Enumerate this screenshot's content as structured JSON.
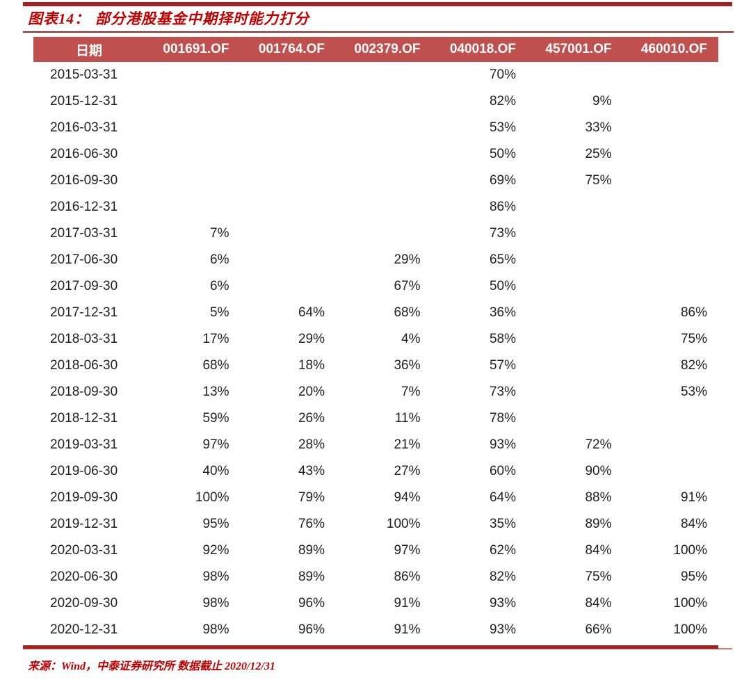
{
  "header": {
    "title_prefix": "图表14：",
    "title_text": "部分港股基金中期择时能力打分",
    "title_color": "#C00000",
    "rule_color": "#A3201F"
  },
  "table": {
    "header_bg": "#C0504D",
    "header_text_color": "#FFFFFF",
    "body_text_color": "#212121",
    "columns": [
      "日期",
      "001691.OF",
      "001764.OF",
      "002379.OF",
      "040018.OF",
      "457001.OF",
      "460010.OF"
    ],
    "rows": [
      {
        "date": "2015-03-31",
        "values": [
          "",
          "",
          "",
          "70%",
          "",
          ""
        ]
      },
      {
        "date": "2015-12-31",
        "values": [
          "",
          "",
          "",
          "82%",
          "9%",
          ""
        ]
      },
      {
        "date": "2016-03-31",
        "values": [
          "",
          "",
          "",
          "53%",
          "33%",
          ""
        ]
      },
      {
        "date": "2016-06-30",
        "values": [
          "",
          "",
          "",
          "50%",
          "25%",
          ""
        ]
      },
      {
        "date": "2016-09-30",
        "values": [
          "",
          "",
          "",
          "69%",
          "75%",
          ""
        ]
      },
      {
        "date": "2016-12-31",
        "values": [
          "",
          "",
          "",
          "86%",
          "",
          ""
        ]
      },
      {
        "date": "2017-03-31",
        "values": [
          "7%",
          "",
          "",
          "73%",
          "",
          ""
        ]
      },
      {
        "date": "2017-06-30",
        "values": [
          "6%",
          "",
          "29%",
          "65%",
          "",
          ""
        ]
      },
      {
        "date": "2017-09-30",
        "values": [
          "6%",
          "",
          "67%",
          "50%",
          "",
          ""
        ]
      },
      {
        "date": "2017-12-31",
        "values": [
          "5%",
          "64%",
          "68%",
          "36%",
          "",
          "86%"
        ]
      },
      {
        "date": "2018-03-31",
        "values": [
          "17%",
          "29%",
          "4%",
          "58%",
          "",
          "75%"
        ]
      },
      {
        "date": "2018-06-30",
        "values": [
          "68%",
          "18%",
          "36%",
          "57%",
          "",
          "82%"
        ]
      },
      {
        "date": "2018-09-30",
        "values": [
          "13%",
          "20%",
          "7%",
          "73%",
          "",
          "53%"
        ]
      },
      {
        "date": "2018-12-31",
        "values": [
          "59%",
          "26%",
          "11%",
          "78%",
          "",
          ""
        ]
      },
      {
        "date": "2019-03-31",
        "values": [
          "97%",
          "28%",
          "21%",
          "93%",
          "72%",
          ""
        ]
      },
      {
        "date": "2019-06-30",
        "values": [
          "40%",
          "43%",
          "27%",
          "60%",
          "90%",
          ""
        ]
      },
      {
        "date": "2019-09-30",
        "values": [
          "100%",
          "79%",
          "94%",
          "64%",
          "88%",
          "91%"
        ]
      },
      {
        "date": "2019-12-31",
        "values": [
          "95%",
          "76%",
          "100%",
          "35%",
          "89%",
          "84%"
        ]
      },
      {
        "date": "2020-03-31",
        "values": [
          "92%",
          "89%",
          "97%",
          "62%",
          "84%",
          "100%"
        ]
      },
      {
        "date": "2020-06-30",
        "values": [
          "98%",
          "89%",
          "86%",
          "82%",
          "75%",
          "95%"
        ]
      },
      {
        "date": "2020-09-30",
        "values": [
          "98%",
          "96%",
          "91%",
          "93%",
          "84%",
          "100%"
        ]
      },
      {
        "date": "2020-12-31",
        "values": [
          "98%",
          "96%",
          "91%",
          "93%",
          "66%",
          "100%"
        ]
      }
    ]
  },
  "footer": {
    "source": "来源：Wind，中泰证券研究所 数据截止 2020/12/31",
    "text_color": "#C00000"
  }
}
